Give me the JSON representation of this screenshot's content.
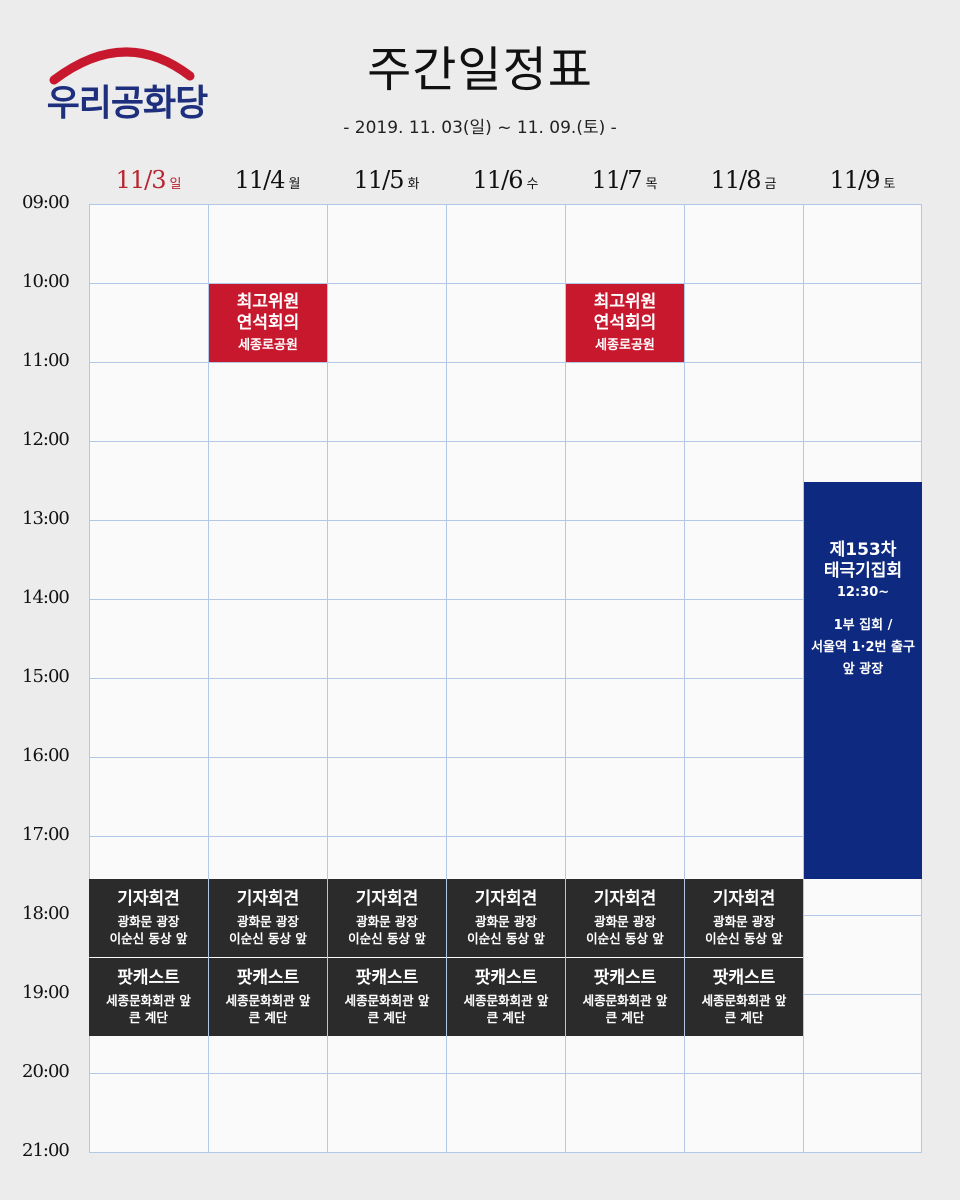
{
  "logo": {
    "text": "우리공화당"
  },
  "header": {
    "title": "주간일정표",
    "subtitle": "- 2019. 11. 03(일) ~ 11. 09.(토) -"
  },
  "days": [
    {
      "date": "11/3",
      "weekday": "일"
    },
    {
      "date": "11/4",
      "weekday": "월"
    },
    {
      "date": "11/5",
      "weekday": "화"
    },
    {
      "date": "11/6",
      "weekday": "수"
    },
    {
      "date": "11/7",
      "weekday": "목"
    },
    {
      "date": "11/8",
      "weekday": "금"
    },
    {
      "date": "11/9",
      "weekday": "토"
    }
  ],
  "hours": [
    "09:00",
    "10:00",
    "11:00",
    "12:00",
    "13:00",
    "14:00",
    "15:00",
    "16:00",
    "17:00",
    "18:00",
    "19:00",
    "20:00",
    "21:00"
  ],
  "colors": {
    "red": "#c8182e",
    "blue": "#0e2a80",
    "dark": "#2b2b2b",
    "grid": "#b3c7e8"
  },
  "events": {
    "council": {
      "title1": "최고위원",
      "title2": "연석회의",
      "place": "세종로공원"
    },
    "rally": {
      "title1": "제153차",
      "title2": "태극기집회",
      "time": "12:30~",
      "line1": "1부 집회 /",
      "line2": "서울역 1·2번 출구",
      "line3": "앞 광장"
    },
    "press": {
      "title": "기자회견",
      "place1": "광화문 광장",
      "place2": "이순신 동상 앞"
    },
    "podcast": {
      "title": "팟캐스트",
      "place1": "세종문화회관 앞",
      "place2": "큰 계단"
    }
  }
}
